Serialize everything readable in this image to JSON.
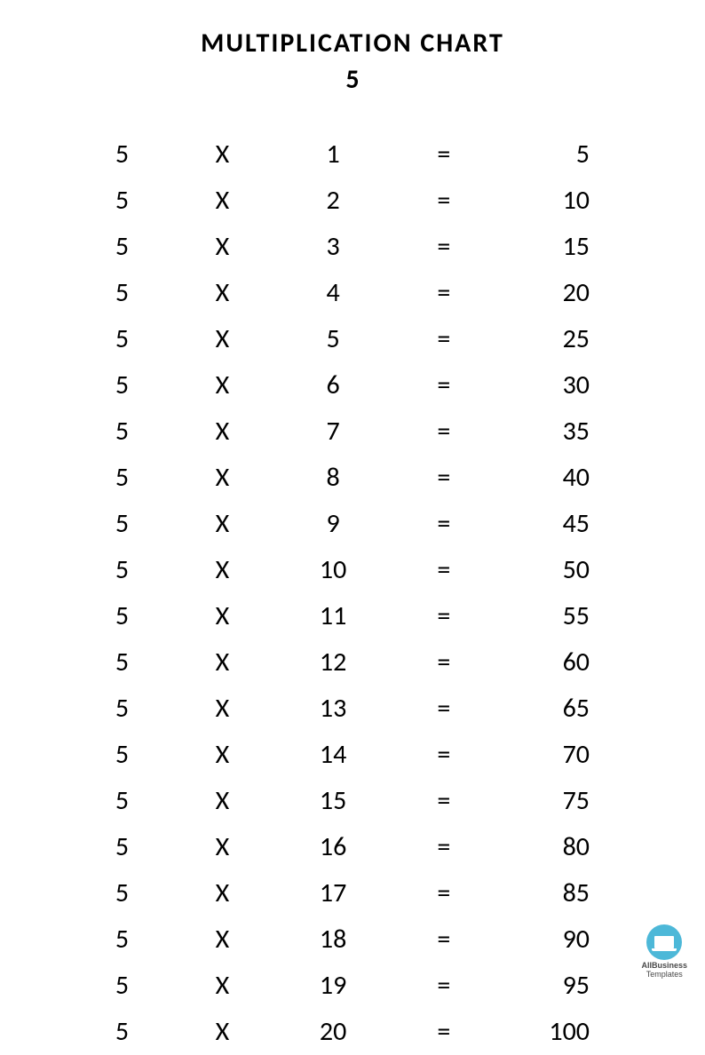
{
  "header": {
    "title": "MULTIPLICATION CHART",
    "subtitle": "5"
  },
  "table": {
    "type": "table",
    "operator": "X",
    "equals": "=",
    "multiplicand": 5,
    "rows": [
      {
        "a": "5",
        "b": "1",
        "r": "5"
      },
      {
        "a": "5",
        "b": "2",
        "r": "10"
      },
      {
        "a": "5",
        "b": "3",
        "r": "15"
      },
      {
        "a": "5",
        "b": "4",
        "r": "20"
      },
      {
        "a": "5",
        "b": "5",
        "r": "25"
      },
      {
        "a": "5",
        "b": "6",
        "r": "30"
      },
      {
        "a": "5",
        "b": "7",
        "r": "35"
      },
      {
        "a": "5",
        "b": "8",
        "r": "40"
      },
      {
        "a": "5",
        "b": "9",
        "r": "45"
      },
      {
        "a": "5",
        "b": "10",
        "r": "50"
      },
      {
        "a": "5",
        "b": "11",
        "r": "55"
      },
      {
        "a": "5",
        "b": "12",
        "r": "60"
      },
      {
        "a": "5",
        "b": "13",
        "r": "65"
      },
      {
        "a": "5",
        "b": "14",
        "r": "70"
      },
      {
        "a": "5",
        "b": "15",
        "r": "75"
      },
      {
        "a": "5",
        "b": "16",
        "r": "80"
      },
      {
        "a": "5",
        "b": "17",
        "r": "85"
      },
      {
        "a": "5",
        "b": "18",
        "r": "90"
      },
      {
        "a": "5",
        "b": "19",
        "r": "95"
      },
      {
        "a": "5",
        "b": "20",
        "r": "100"
      }
    ],
    "font_size": 30,
    "text_color": "#000000",
    "background_color": "#ffffff"
  },
  "logo": {
    "line1": "AllBusiness",
    "line2": "Templates",
    "icon_bg_color": "#4db8d8",
    "icon_fg_color": "#ffffff"
  }
}
